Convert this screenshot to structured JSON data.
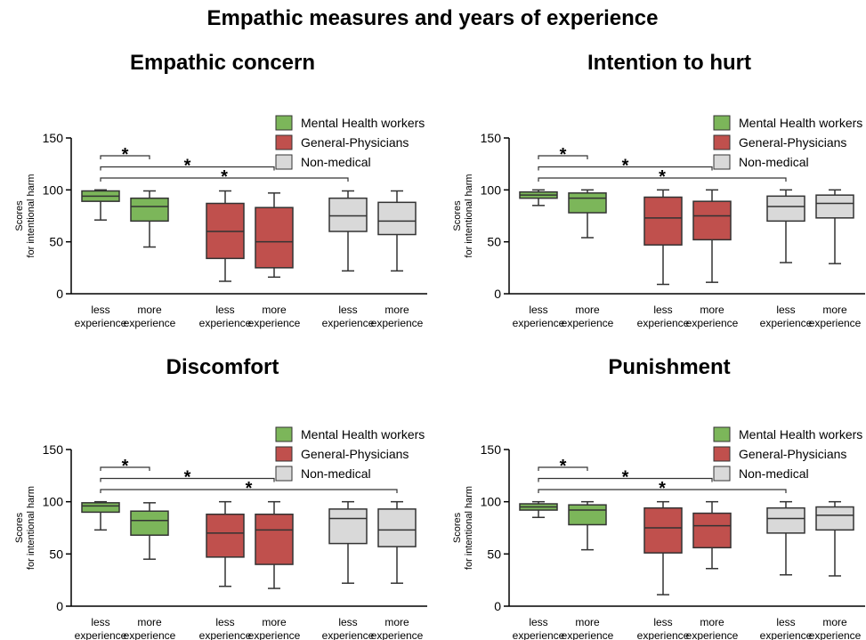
{
  "title": "Empathic measures and years of experience",
  "chart_data": [
    {
      "type": "box",
      "title": "Empathic concern",
      "ylabel": [
        "Scores",
        "for intentional harm"
      ],
      "ylim": [
        0,
        150
      ],
      "yticks": [
        0,
        50,
        100,
        150
      ],
      "categories": [
        "less experience",
        "more experience",
        "less experience",
        "more experience",
        "less experience",
        "more experience"
      ],
      "series": [
        {
          "name": "Mental Health workers",
          "color": "#7cb65a",
          "values": [
            {
              "min": 71,
              "q1": 89,
              "median": 94,
              "q3": 99,
              "max": 100
            },
            {
              "min": 45,
              "q1": 70,
              "median": 84,
              "q3": 92,
              "max": 99
            }
          ]
        },
        {
          "name": "General-Physicians",
          "color": "#c0504d",
          "values": [
            {
              "min": 12,
              "q1": 34,
              "median": 60,
              "q3": 87,
              "max": 99
            },
            {
              "min": 16,
              "q1": 25,
              "median": 50,
              "q3": 83,
              "max": 97
            }
          ]
        },
        {
          "name": "Non-medical",
          "color": "#d9d9d9",
          "values": [
            {
              "min": 22,
              "q1": 60,
              "median": 75,
              "q3": 92,
              "max": 99
            },
            {
              "min": 22,
              "q1": 57,
              "median": 70,
              "q3": 88,
              "max": 99
            }
          ]
        }
      ],
      "significance": [
        {
          "from": 0,
          "to": 1,
          "label": "*"
        },
        {
          "from": 0,
          "to": 3,
          "label": "*"
        },
        {
          "from": 0,
          "to": 4,
          "label": "*"
        }
      ]
    },
    {
      "type": "box",
      "title": "Intention to hurt",
      "ylabel": [
        "Scores",
        "for intentional harm"
      ],
      "ylim": [
        0,
        150
      ],
      "yticks": [
        0,
        50,
        100,
        150
      ],
      "categories": [
        "less experience",
        "more experience",
        "less experience",
        "more experience",
        "less experience",
        "more experience"
      ],
      "series": [
        {
          "name": "Mental Health workers",
          "color": "#7cb65a",
          "values": [
            {
              "min": 85,
              "q1": 92,
              "median": 95,
              "q3": 98,
              "max": 100
            },
            {
              "min": 54,
              "q1": 78,
              "median": 92,
              "q3": 97,
              "max": 100
            }
          ]
        },
        {
          "name": "General-Physicians",
          "color": "#c0504d",
          "values": [
            {
              "min": 9,
              "q1": 47,
              "median": 73,
              "q3": 93,
              "max": 100
            },
            {
              "min": 11,
              "q1": 52,
              "median": 75,
              "q3": 89,
              "max": 100
            }
          ]
        },
        {
          "name": "Non-medical",
          "color": "#d9d9d9",
          "values": [
            {
              "min": 30,
              "q1": 70,
              "median": 84,
              "q3": 94,
              "max": 100
            },
            {
              "min": 29,
              "q1": 73,
              "median": 87,
              "q3": 95,
              "max": 100
            }
          ]
        }
      ],
      "significance": [
        {
          "from": 0,
          "to": 1,
          "label": "*"
        },
        {
          "from": 0,
          "to": 3,
          "label": "*"
        },
        {
          "from": 0,
          "to": 4,
          "label": "*"
        }
      ]
    },
    {
      "type": "box",
      "title": "Discomfort",
      "ylabel": [
        "Scores",
        "for intentional harm"
      ],
      "ylim": [
        0,
        150
      ],
      "yticks": [
        0,
        50,
        100,
        150
      ],
      "categories": [
        "less experience",
        "more experience",
        "less experience",
        "more experience",
        "less experience",
        "more experience"
      ],
      "series": [
        {
          "name": "Mental Health workers",
          "color": "#7cb65a",
          "values": [
            {
              "min": 73,
              "q1": 90,
              "median": 96,
              "q3": 99,
              "max": 100
            },
            {
              "min": 45,
              "q1": 68,
              "median": 82,
              "q3": 91,
              "max": 99
            }
          ]
        },
        {
          "name": "General-Physicians",
          "color": "#c0504d",
          "values": [
            {
              "min": 19,
              "q1": 47,
              "median": 70,
              "q3": 88,
              "max": 100
            },
            {
              "min": 17,
              "q1": 40,
              "median": 73,
              "q3": 88,
              "max": 100
            }
          ]
        },
        {
          "name": "Non-medical",
          "color": "#d9d9d9",
          "values": [
            {
              "min": 22,
              "q1": 60,
              "median": 84,
              "q3": 93,
              "max": 100
            },
            {
              "min": 22,
              "q1": 57,
              "median": 73,
              "q3": 93,
              "max": 100
            }
          ]
        }
      ],
      "significance": [
        {
          "from": 0,
          "to": 1,
          "label": "*"
        },
        {
          "from": 0,
          "to": 3,
          "label": "*"
        },
        {
          "from": 0,
          "to": 5,
          "label": "*"
        }
      ]
    },
    {
      "type": "box",
      "title": "Punishment",
      "ylabel": [
        "Scores",
        "for intentional harm"
      ],
      "ylim": [
        0,
        150
      ],
      "yticks": [
        0,
        50,
        100,
        150
      ],
      "categories": [
        "less experience",
        "more experience",
        "less experience",
        "more experience",
        "less experience",
        "more experience"
      ],
      "series": [
        {
          "name": "Mental Health workers",
          "color": "#7cb65a",
          "values": [
            {
              "min": 85,
              "q1": 92,
              "median": 95,
              "q3": 98,
              "max": 100
            },
            {
              "min": 54,
              "q1": 78,
              "median": 92,
              "q3": 97,
              "max": 100
            }
          ]
        },
        {
          "name": "General-Physicians",
          "color": "#c0504d",
          "values": [
            {
              "min": 11,
              "q1": 51,
              "median": 75,
              "q3": 94,
              "max": 100
            },
            {
              "min": 36,
              "q1": 56,
              "median": 77,
              "q3": 89,
              "max": 100
            }
          ]
        },
        {
          "name": "Non-medical",
          "color": "#d9d9d9",
          "values": [
            {
              "min": 30,
              "q1": 70,
              "median": 84,
              "q3": 94,
              "max": 100
            },
            {
              "min": 29,
              "q1": 73,
              "median": 87,
              "q3": 95,
              "max": 100
            }
          ]
        }
      ],
      "significance": [
        {
          "from": 0,
          "to": 1,
          "label": "*"
        },
        {
          "from": 0,
          "to": 3,
          "label": "*"
        },
        {
          "from": 0,
          "to": 4,
          "label": "*"
        }
      ]
    }
  ]
}
